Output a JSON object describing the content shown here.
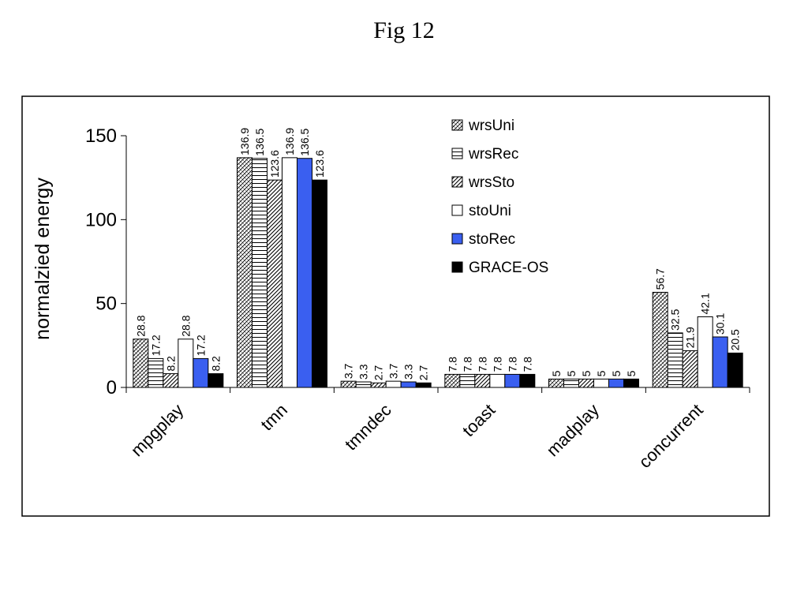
{
  "title": "Fig 12",
  "chart_data": {
    "type": "bar",
    "title": "",
    "xlabel": "",
    "ylabel": "normalzied energy",
    "ylim": [
      0,
      150
    ],
    "yticks": [
      0,
      50,
      100,
      150
    ],
    "categories": [
      "mpgplay",
      "tmn",
      "tmndec",
      "toast",
      "madplay",
      "concurrent"
    ],
    "series": [
      {
        "name": "wrsUni",
        "pattern": "crosshatch",
        "values": [
          28.8,
          136.9,
          3.7,
          7.8,
          5,
          56.7
        ],
        "labels": [
          "28.8",
          "136.9",
          "3.7",
          "7.8",
          "5",
          "56.7"
        ]
      },
      {
        "name": "wrsRec",
        "pattern": "horizontal",
        "values": [
          17.2,
          136.5,
          3.3,
          7.8,
          5,
          32.5
        ],
        "labels": [
          "17.2",
          "136.5",
          "3.3",
          "7.8",
          "5",
          "32.5"
        ]
      },
      {
        "name": "wrsSto",
        "pattern": "diagonal",
        "values": [
          8.2,
          123.6,
          2.7,
          7.8,
          5,
          21.9
        ],
        "labels": [
          "8.2",
          "123.6",
          "2.7",
          "7.8",
          "5",
          "21.9"
        ]
      },
      {
        "name": "stoUni",
        "color": "#ffffff",
        "values": [
          28.8,
          136.9,
          3.7,
          7.8,
          5,
          42.1
        ],
        "labels": [
          "28.8",
          "136.9",
          "3.7",
          "7.8",
          "5",
          "42.1"
        ]
      },
      {
        "name": "stoRec",
        "color": "#3a5ff0",
        "values": [
          17.2,
          136.5,
          3.3,
          7.8,
          5,
          30.1
        ],
        "labels": [
          "17.2",
          "136.5",
          "3.3",
          "7.8",
          "5",
          "30.1"
        ]
      },
      {
        "name": "GRACE-OS",
        "color": "#000000",
        "values": [
          8.2,
          123.6,
          2.7,
          7.8,
          5,
          20.5
        ],
        "labels": [
          "8.2",
          "123.6",
          "2.7",
          "7.8",
          "5",
          "20.5"
        ]
      }
    ],
    "legend": "top-right",
    "grid": false
  }
}
